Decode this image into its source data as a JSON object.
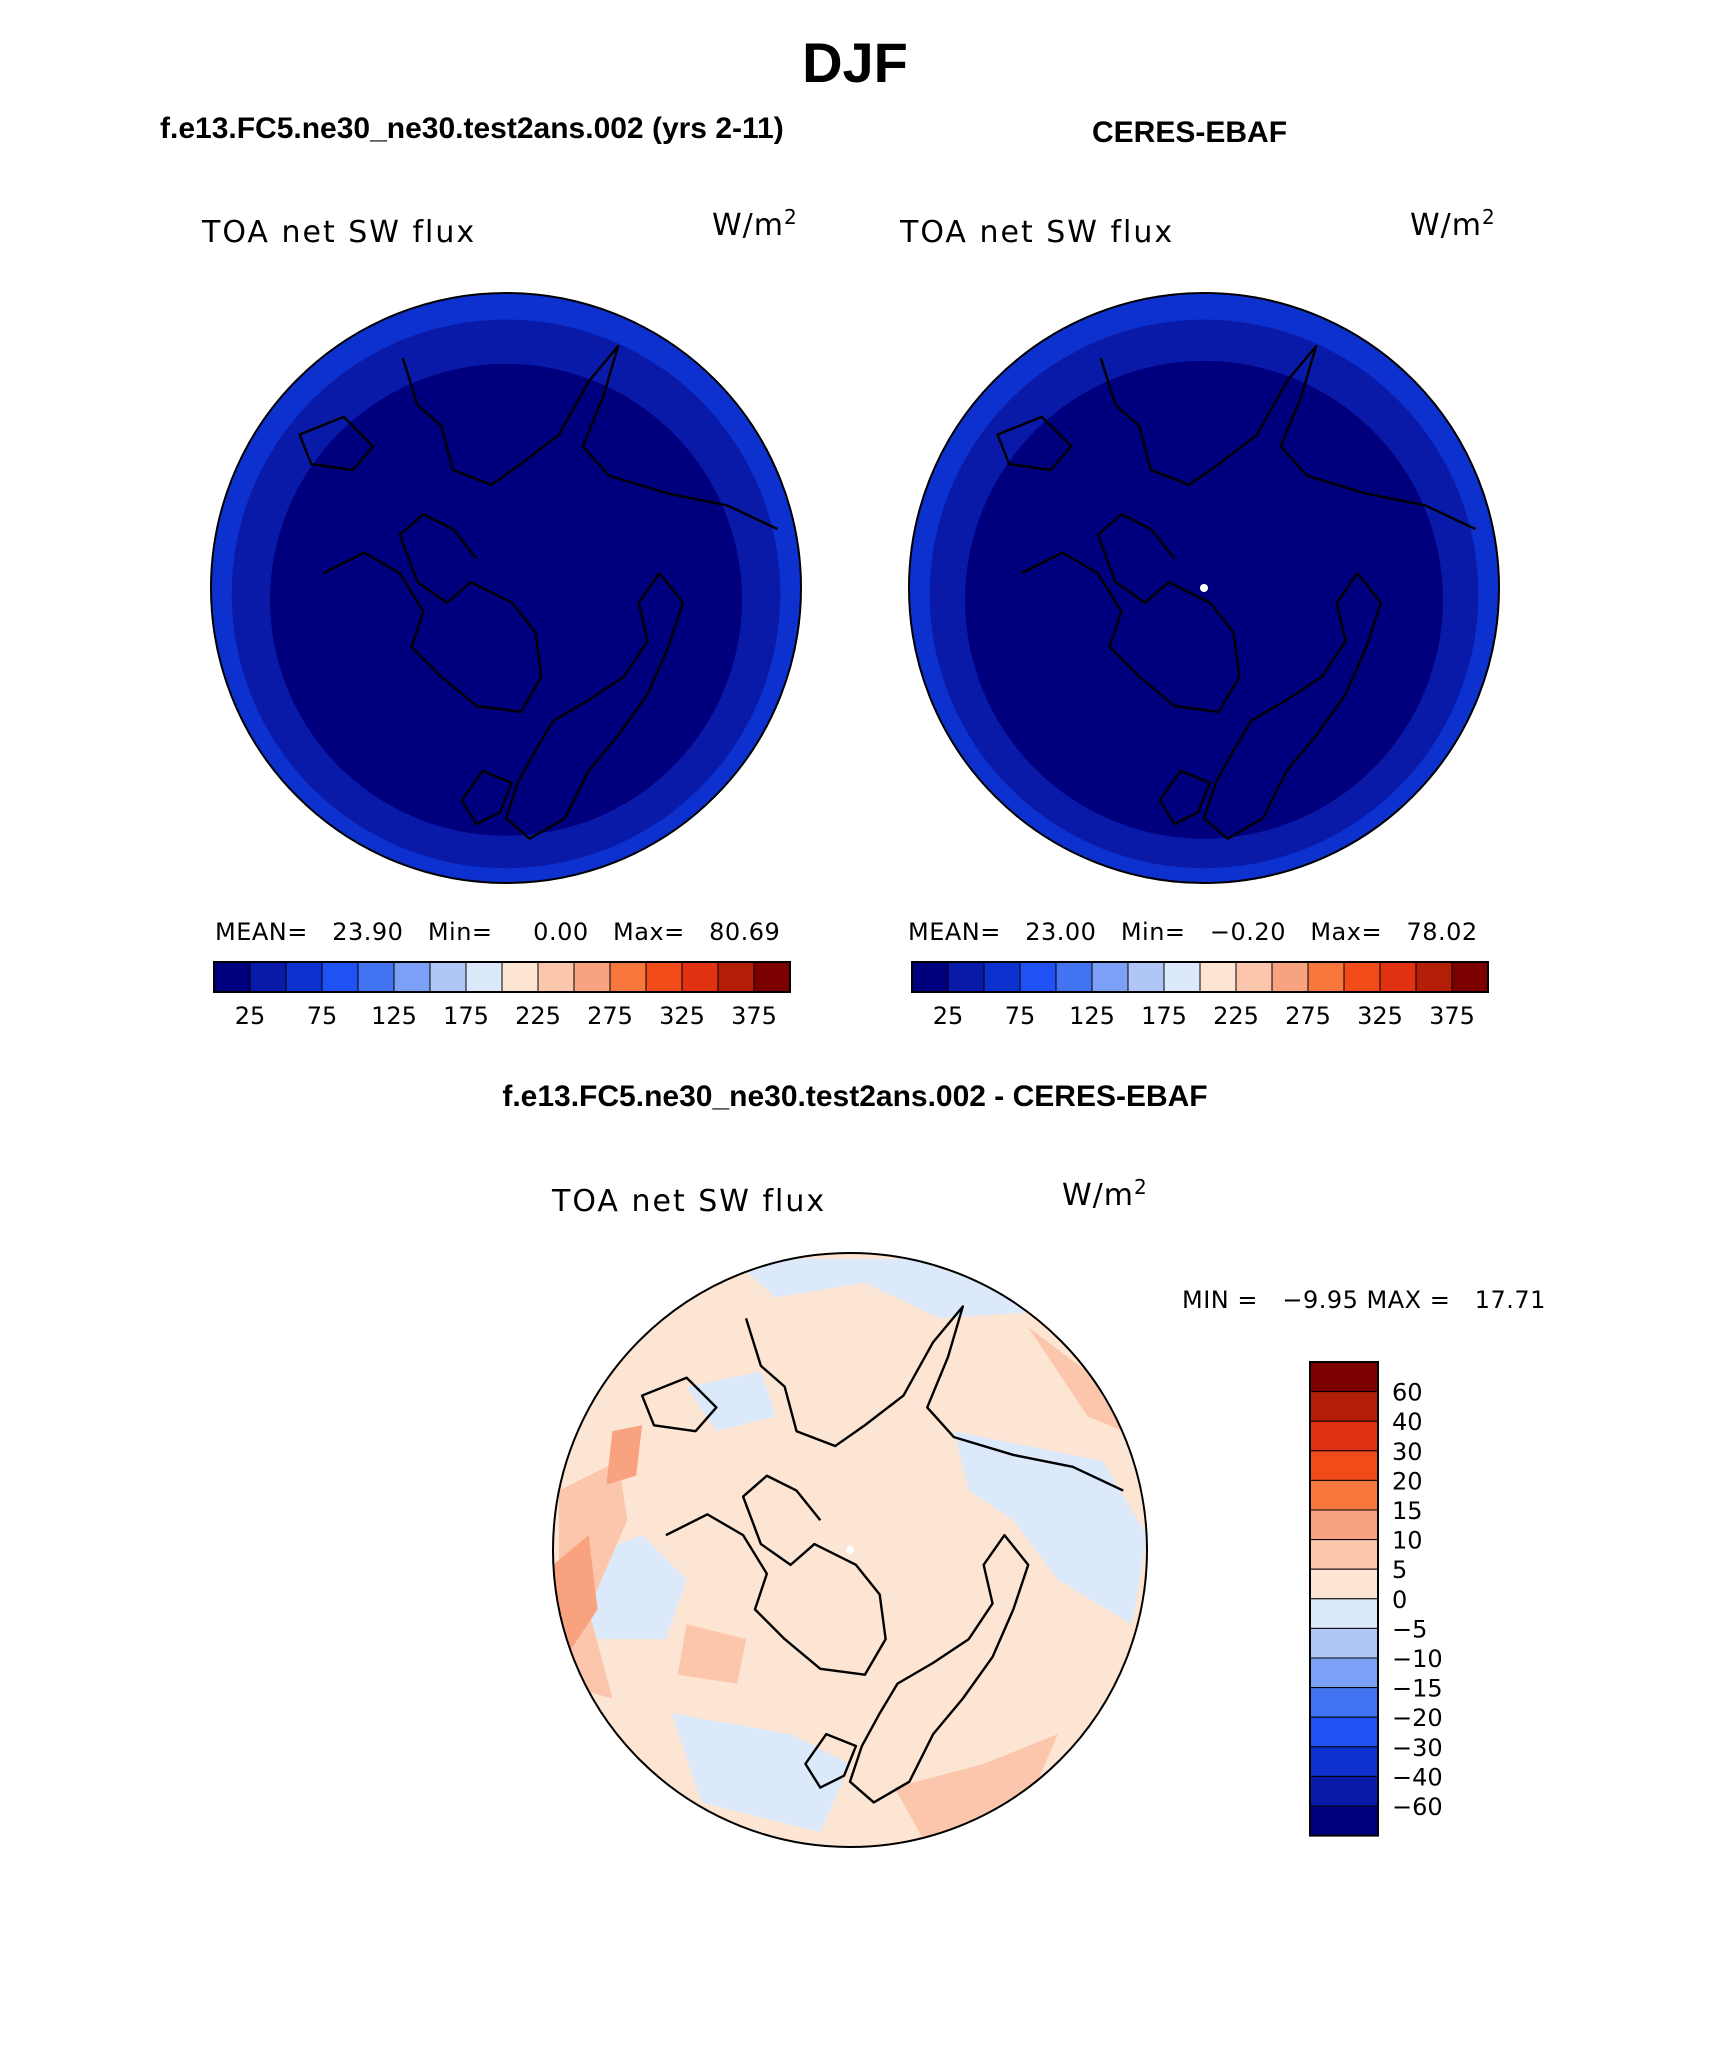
{
  "figure": {
    "title": "DJF",
    "top_left_title": "f.e13.FC5.ne30_ne30.test2ans.002 (yrs 2-11)",
    "top_right_title": "CERES-EBAF",
    "bottom_title": "f.e13.FC5.ne30_ne30.test2ans.002 - CERES-EBAF"
  },
  "chart_data": [
    {
      "type": "heatmap",
      "projection": "polar-stereographic-north",
      "variable": "TOA net SW flux",
      "units_base": "W/m",
      "units_exp": "2",
      "stats_text": "MEAN=   23.90   Min=     0.00   Max=   80.69",
      "stats": {
        "mean": 23.9,
        "min": 0.0,
        "max": 80.69
      },
      "colorbar": {
        "orientation": "horizontal",
        "levels": [
          0,
          25,
          50,
          75,
          100,
          125,
          150,
          175,
          200,
          225,
          250,
          275,
          300,
          325,
          350,
          375,
          400
        ],
        "tick_labels": [
          "25",
          "75",
          "125",
          "175",
          "225",
          "275",
          "325",
          "375"
        ],
        "colors": [
          "#00007f",
          "#0a1aa8",
          "#0d31cf",
          "#1f51f5",
          "#4273f0",
          "#7ba0f5",
          "#b0c6f7",
          "#dce9fb",
          "#fce5d2",
          "#fbc6ab",
          "#f8a280",
          "#f7773d",
          "#f24b1a",
          "#e03111",
          "#b31f06",
          "#7d0000"
        ]
      },
      "field_rings": [
        {
          "radius_frac": 1.0,
          "color": "#0d31cf"
        },
        {
          "radius_frac": 0.93,
          "color": "#0a1aa8"
        },
        {
          "radius_frac": 0.8,
          "color": "#00007f"
        }
      ],
      "polar_dot": false
    },
    {
      "type": "heatmap",
      "projection": "polar-stereographic-north",
      "variable": "TOA net SW flux",
      "units_base": "W/m",
      "units_exp": "2",
      "stats_text": "MEAN=   23.00   Min=   −0.20   Max=   78.02",
      "stats": {
        "mean": 23.0,
        "min": -0.2,
        "max": 78.02
      },
      "colorbar": {
        "orientation": "horizontal",
        "levels": [
          0,
          25,
          50,
          75,
          100,
          125,
          150,
          175,
          200,
          225,
          250,
          275,
          300,
          325,
          350,
          375,
          400
        ],
        "tick_labels": [
          "25",
          "75",
          "125",
          "175",
          "225",
          "275",
          "325",
          "375"
        ],
        "colors": [
          "#00007f",
          "#0a1aa8",
          "#0d31cf",
          "#1f51f5",
          "#4273f0",
          "#7ba0f5",
          "#b0c6f7",
          "#dce9fb",
          "#fce5d2",
          "#fbc6ab",
          "#f8a280",
          "#f7773d",
          "#f24b1a",
          "#e03111",
          "#b31f06",
          "#7d0000"
        ]
      },
      "field_rings": [
        {
          "radius_frac": 1.0,
          "color": "#0d31cf"
        },
        {
          "radius_frac": 0.93,
          "color": "#0a1aa8"
        },
        {
          "radius_frac": 0.81,
          "color": "#00007f"
        }
      ],
      "polar_dot": true
    },
    {
      "type": "heatmap",
      "projection": "polar-stereographic-north",
      "variable": "TOA net SW flux",
      "units_base": "W/m",
      "units_exp": "2",
      "stats_text": "MIN =   −9.95 MAX =   17.71",
      "stats": {
        "min": -9.95,
        "max": 17.71
      },
      "colorbar": {
        "orientation": "vertical",
        "levels": [
          -80,
          -60,
          -40,
          -30,
          -20,
          -15,
          -10,
          -5,
          0,
          5,
          10,
          15,
          20,
          30,
          40,
          60,
          80
        ],
        "tick_labels": [
          "60",
          "40",
          "30",
          "20",
          "15",
          "10",
          "5",
          "0",
          "−5",
          "−10",
          "−15",
          "−20",
          "−30",
          "−40",
          "−60"
        ],
        "colors": [
          "#7d0000",
          "#b31f06",
          "#e03111",
          "#f24b1a",
          "#f7773d",
          "#f8a280",
          "#fbc6ab",
          "#fce5d2",
          "#dce9fb",
          "#b0c6f7",
          "#7ba0f5",
          "#4273f0",
          "#1f51f5",
          "#0d31cf",
          "#0a1aa8",
          "#00007f"
        ]
      },
      "field_base": "#fce5d2",
      "field_patches": [
        {
          "bin": "-5 to 0",
          "color": "#dce9fb"
        },
        {
          "bin": "5 to 10",
          "color": "#fbc6ab"
        },
        {
          "bin": "10 to 15",
          "color": "#f8a280"
        }
      ],
      "polar_dot": true
    }
  ]
}
